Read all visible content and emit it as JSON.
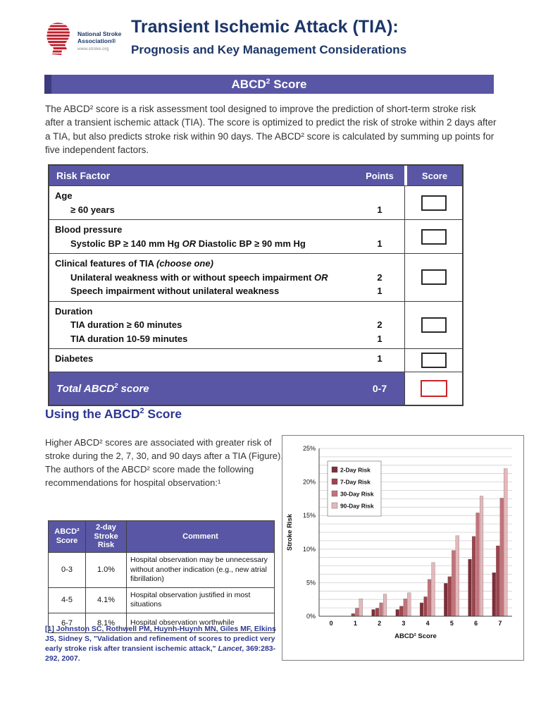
{
  "colors": {
    "purple": "#5956a5",
    "purple_dark": "#3d3a80",
    "navy_title": "#1c3668",
    "blue_heading": "#2c3792",
    "score_box_red": "#cc2227",
    "logo_red": "#c1202e"
  },
  "header": {
    "logo": {
      "org_name": "National Stroke\nAssociation®",
      "website": "www.stroke.org"
    },
    "title": "Transient Ischemic Attack (TIA):",
    "subtitle": "Prognosis and Key Management Considerations"
  },
  "banner": {
    "prefix": "ABCD",
    "sup": "2",
    "suffix": " Score"
  },
  "intro": "The ABCD² score is a risk assessment tool designed to improve the prediction of short-term stroke risk after a transient ischemic attack (TIA). The score is optimized to predict the risk of stroke within 2 days after a TIA, but also predicts stroke risk within 90 days.  The ABCD² score is calculated by summing up points for five independent factors.",
  "risk_table": {
    "header": {
      "factor": "Risk Factor",
      "points": "Points",
      "score": "Score"
    },
    "rows": [
      {
        "lines": [
          {
            "text": "Age",
            "indent": false,
            "points": ""
          },
          {
            "text": "≥ 60 years",
            "indent": true,
            "points": "1"
          }
        ]
      },
      {
        "lines": [
          {
            "text": "Blood pressure",
            "indent": false,
            "points": ""
          },
          {
            "text": "Systolic BP ≥ 140 mm Hg OR Diastolic BP ≥ 90 mm Hg",
            "indent": true,
            "points": "1"
          }
        ]
      },
      {
        "lines": [
          {
            "text": "Clinical features of TIA ",
            "note": "(choose one)",
            "indent": false,
            "points": ""
          },
          {
            "text": "Unilateral weakness with or without speech impairment OR",
            "indent": true,
            "points": "2"
          },
          {
            "text": "Speech impairment without unilateral weakness",
            "indent": true,
            "points": "1"
          }
        ]
      },
      {
        "lines": [
          {
            "text": "Duration",
            "indent": false,
            "points": ""
          },
          {
            "text": "TIA duration ≥ 60 minutes",
            "indent": true,
            "points": "2"
          },
          {
            "text": "TIA duration 10-59 minutes",
            "indent": true,
            "points": "1"
          }
        ]
      },
      {
        "lines": [
          {
            "text": "Diabetes",
            "indent": false,
            "points": "1"
          }
        ]
      }
    ],
    "total": {
      "prefix": "Total ABCD",
      "sup": "2",
      "suffix": " score",
      "points": "0-7"
    }
  },
  "using_section": {
    "heading": {
      "prefix": "Using the ABCD",
      "sup": "2",
      "suffix": " Score"
    },
    "paragraph": "Higher ABCD² scores are associated with greater risk of stroke during the 2, 7, 30, and 90 days after a TIA (Figure).  The authors of the ABCD² score made the following recommendations for hospital observation:¹"
  },
  "obs_table": {
    "headers": [
      "ABCD²\nScore",
      "2-day\nStroke\nRisk",
      "Comment"
    ],
    "rows": [
      {
        "score": "0-3",
        "risk": "1.0%",
        "comment": "Hospital observation may be unnecessary without another indication (e.g., new atrial fibrillation)"
      },
      {
        "score": "4-5",
        "risk": "4.1%",
        "comment": "Hospital observation justified in most situations"
      },
      {
        "score": "6-7",
        "risk": "8.1%",
        "comment": "Hospital observation worthwhile"
      }
    ]
  },
  "footnote": {
    "before": "[1] Johnston SC, Rothwell PM, Huynh-Huynh MN, Giles MF, Elkins JS, Sidney S, \"Validation and refinement of scores to predict very early stroke risk after transient ischemic attack,\" ",
    "journal": "Lancet",
    "after": ", 369:283-292, 2007."
  },
  "chart_data": {
    "type": "bar",
    "title": "",
    "xlabel": "ABCD² Score",
    "ylabel": "Stroke Risk",
    "categories": [
      "0",
      "1",
      "2",
      "3",
      "4",
      "5",
      "6",
      "7"
    ],
    "ylim": [
      0,
      25
    ],
    "ytick_step": 5,
    "ytick_labels": [
      "0%",
      "5%",
      "10%",
      "15%",
      "20%",
      "25%"
    ],
    "grid_step": 1.25,
    "grid": true,
    "legend_position": "upper-left",
    "series": [
      {
        "name": "2-Day Risk",
        "color": "#7e2e38",
        "values": [
          0,
          0,
          1.0,
          1.0,
          2.0,
          4.9,
          8.5,
          6.5
        ]
      },
      {
        "name": "7-Day Risk",
        "color": "#9e434c",
        "values": [
          0,
          0.4,
          1.2,
          1.5,
          2.9,
          5.9,
          11.9,
          10.5
        ]
      },
      {
        "name": "30-Day Risk",
        "color": "#c3737a",
        "values": [
          0,
          1.2,
          2.0,
          2.6,
          5.5,
          9.8,
          15.4,
          17.6
        ]
      },
      {
        "name": "90-Day Risk",
        "color": "#e5b8bb",
        "values": [
          0,
          2.6,
          3.3,
          3.5,
          8.0,
          12.0,
          17.9,
          22.0
        ]
      }
    ]
  }
}
